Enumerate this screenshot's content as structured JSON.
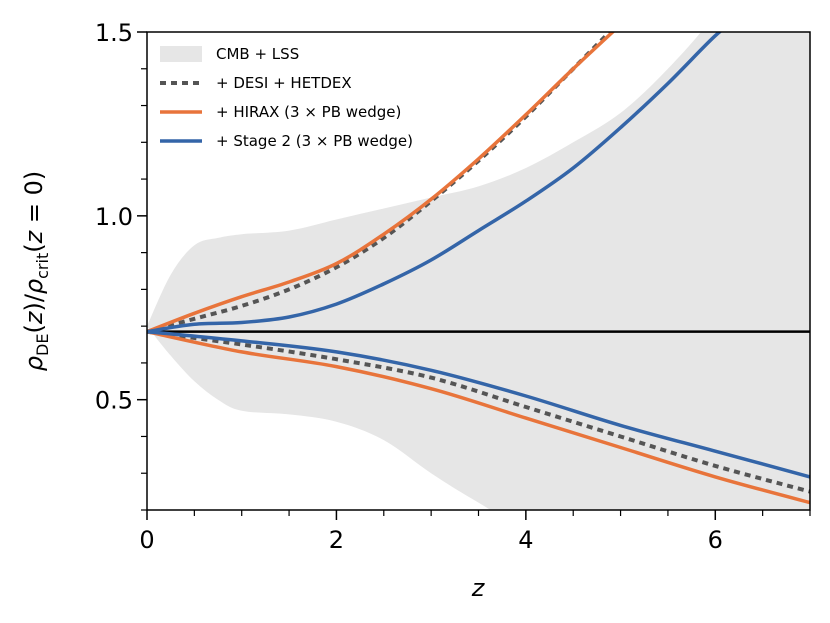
{
  "chart_data": {
    "type": "line",
    "title": "",
    "xlabel": "z",
    "ylabel": "ρ_DE(z)/ρ_crit(z=0)",
    "xlim": [
      0,
      7
    ],
    "ylim": [
      0.2,
      1.5
    ],
    "xticks": [
      0,
      2,
      4,
      6
    ],
    "yticks": [
      0.5,
      1.0,
      1.5
    ],
    "xtick_labels": [
      "0",
      "2",
      "4",
      "6"
    ],
    "ytick_labels": [
      "0.5",
      "1.0",
      "1.5"
    ],
    "xminor_step": 0.5,
    "yminor_step": 0.1,
    "grid": false,
    "legend_position": "top-left",
    "reference_line": {
      "y": 0.685,
      "color": "#000000"
    },
    "band": {
      "name": "CMB + LSS",
      "color": "#e6e6e6",
      "x": [
        0,
        0.25,
        0.5,
        0.75,
        1.0,
        1.5,
        2.0,
        2.5,
        3.0,
        3.5,
        4.0,
        4.5,
        5.0,
        5.5,
        6.0,
        6.5,
        7.0
      ],
      "upper": [
        0.7,
        0.84,
        0.92,
        0.94,
        0.95,
        0.96,
        0.99,
        1.02,
        1.05,
        1.08,
        1.13,
        1.2,
        1.28,
        1.4,
        1.55,
        1.75,
        2.0
      ],
      "lower": [
        0.7,
        0.62,
        0.55,
        0.5,
        0.47,
        0.46,
        0.44,
        0.39,
        0.3,
        0.22,
        0.15,
        0.15,
        0.15,
        0.15,
        0.15,
        0.15,
        0.15
      ]
    },
    "series": [
      {
        "name": "+ DESI + HETDEX",
        "color": "#555555",
        "style": "dotted",
        "x": [
          0,
          0.5,
          1.0,
          1.5,
          2.0,
          2.5,
          3.0,
          3.5,
          4.0,
          4.5,
          5.0,
          5.2
        ],
        "upper": [
          0.685,
          0.72,
          0.755,
          0.8,
          0.86,
          0.94,
          1.04,
          1.15,
          1.27,
          1.4,
          1.53,
          1.58
        ],
        "x_lower": [
          0,
          1.0,
          2.0,
          3.0,
          4.0,
          5.0,
          6.0,
          7.0
        ],
        "lower": [
          0.685,
          0.65,
          0.61,
          0.56,
          0.48,
          0.4,
          0.32,
          0.25
        ]
      },
      {
        "name": "+ HIRAX (3 × PB wedge)",
        "color": "#e8743b",
        "style": "solid",
        "x": [
          0,
          0.5,
          1.0,
          1.5,
          2.0,
          2.5,
          3.0,
          3.5,
          4.0,
          4.5,
          5.0,
          5.1
        ],
        "upper": [
          0.685,
          0.735,
          0.78,
          0.82,
          0.87,
          0.95,
          1.045,
          1.155,
          1.275,
          1.4,
          1.52,
          1.545
        ],
        "x_lower": [
          0,
          1.0,
          2.0,
          3.0,
          4.0,
          5.0,
          6.0,
          7.0
        ],
        "lower": [
          0.685,
          0.63,
          0.59,
          0.53,
          0.45,
          0.37,
          0.29,
          0.22
        ]
      },
      {
        "name": "+ Stage 2 (3 × PB wedge)",
        "color": "#3465a8",
        "style": "solid",
        "x": [
          0,
          0.5,
          1.0,
          1.5,
          2.0,
          2.5,
          3.0,
          3.5,
          4.0,
          4.5,
          5.0,
          5.5,
          6.0,
          6.3
        ],
        "upper": [
          0.685,
          0.705,
          0.71,
          0.725,
          0.76,
          0.815,
          0.88,
          0.96,
          1.04,
          1.13,
          1.24,
          1.36,
          1.49,
          1.55
        ],
        "x_lower": [
          0,
          1.0,
          2.0,
          3.0,
          4.0,
          5.0,
          6.0,
          7.0
        ],
        "lower": [
          0.685,
          0.66,
          0.63,
          0.58,
          0.51,
          0.43,
          0.36,
          0.29
        ]
      }
    ],
    "legend": [
      {
        "label": "CMB + LSS",
        "kind": "patch",
        "color": "#e6e6e6"
      },
      {
        "label": "+ DESI + HETDEX",
        "kind": "dotted",
        "color": "#555555"
      },
      {
        "label": "+ HIRAX (3 × PB wedge)",
        "kind": "line",
        "color": "#e8743b"
      },
      {
        "label": "+ Stage 2 (3 × PB wedge)",
        "kind": "line",
        "color": "#3465a8"
      }
    ]
  }
}
